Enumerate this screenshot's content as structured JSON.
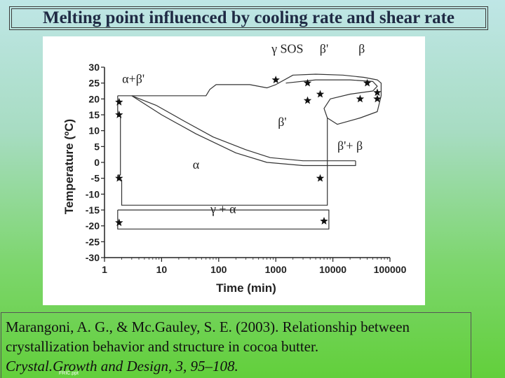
{
  "slide": {
    "title": "Melting point influenced by cooling rate and shear rate",
    "footer_tag": "FRIC.ppt"
  },
  "citation": {
    "line1": "Marangoni, A. G., & Mc.Gauley, S. E. (2003). Relationship between",
    "line2": "crystallization behavior and structure in cocoa butter.",
    "journal": "Crystal.Growth and Design, 3, 95–108."
  },
  "chart_data": {
    "type": "scatter",
    "title": "",
    "xlabel": "Time (min)",
    "ylabel": "Temperature (ºC)",
    "x_scale": "log",
    "xlim": [
      1,
      100000
    ],
    "ylim": [
      -30,
      30
    ],
    "x_ticks": [
      "1",
      "10",
      "100",
      "1000",
      "10000",
      "100000"
    ],
    "y_ticks": [
      "30",
      "25",
      "20",
      "15",
      "10",
      "5",
      "0",
      "-5",
      "-10",
      "-15",
      "-20",
      "-25",
      "-30"
    ],
    "star_points": [
      {
        "x": 1.8,
        "y": 19
      },
      {
        "x": 1.8,
        "y": 15
      },
      {
        "x": 1.8,
        "y": -5
      },
      {
        "x": 1.8,
        "y": -19
      },
      {
        "x": 1000,
        "y": 26
      },
      {
        "x": 3600,
        "y": 25
      },
      {
        "x": 3600,
        "y": 19.5
      },
      {
        "x": 6000,
        "y": 21.5
      },
      {
        "x": 6000,
        "y": -5
      },
      {
        "x": 7000,
        "y": -18.5
      },
      {
        "x": 30000,
        "y": 20
      },
      {
        "x": 40000,
        "y": 25
      },
      {
        "x": 60000,
        "y": 22
      },
      {
        "x": 60000,
        "y": 20
      }
    ],
    "region_labels": [
      {
        "text": "α+β'",
        "x": 3.2,
        "y": 25
      },
      {
        "text": "γ SOS",
        "x": 1600,
        "y": 34.5
      },
      {
        "text": "β'",
        "x": 7000,
        "y": 34.5
      },
      {
        "text": "β",
        "x": 32000,
        "y": 34.5
      },
      {
        "text": "β'",
        "x": 1300,
        "y": 11.5
      },
      {
        "text": "α",
        "x": 40,
        "y": -2
      },
      {
        "text": "β'+ β",
        "x": 20000,
        "y": 4
      },
      {
        "text": "γ + α",
        "x": 120,
        "y": -16
      }
    ],
    "boundaries": [
      {
        "name": "",
        "points": [
          [
            1.7,
            21
          ],
          [
            1.7,
            14.5
          ],
          [
            1.9,
            14.5
          ],
          [
            1.9,
            -4
          ],
          [
            1.7,
            -4
          ],
          [
            1.7,
            -5.5
          ],
          [
            2,
            -5.5
          ]
        ]
      },
      {
        "name": "",
        "points": [
          [
            2,
            -5.5
          ],
          [
            2,
            -13.5
          ],
          [
            8000,
            -13.5
          ],
          [
            8000,
            -7
          ],
          [
            8000,
            14
          ]
        ]
      },
      {
        "name": "",
        "points": [
          [
            1.7,
            21
          ],
          [
            3,
            21
          ],
          [
            30,
            21
          ],
          [
            60,
            21
          ],
          [
            70,
            23
          ],
          [
            90,
            24.5
          ],
          [
            350,
            24.5
          ],
          [
            700,
            23.5
          ],
          [
            1000,
            24.5
          ],
          [
            2000,
            27.5
          ],
          [
            5000,
            27.8
          ],
          [
            15000,
            27.5
          ],
          [
            35000,
            26.8
          ],
          [
            60000,
            26
          ],
          [
            70000,
            25
          ],
          [
            70000,
            21
          ],
          [
            60000,
            16
          ],
          [
            30000,
            14
          ],
          [
            12000,
            12
          ],
          [
            8000,
            14
          ],
          [
            7000,
            17
          ],
          [
            9000,
            20
          ],
          [
            20000,
            21.5
          ],
          [
            50000,
            22.5
          ],
          [
            60000,
            24
          ],
          [
            50000,
            25.5
          ],
          [
            20000,
            26
          ],
          [
            5000,
            26
          ],
          [
            1500,
            25
          ]
        ]
      },
      {
        "name": "",
        "points": [
          [
            3,
            21
          ],
          [
            8,
            18
          ],
          [
            25,
            13
          ],
          [
            80,
            8
          ],
          [
            300,
            4
          ],
          [
            800,
            1.5
          ],
          [
            3000,
            0.5
          ],
          [
            25000,
            0.5
          ]
        ]
      },
      {
        "name": "",
        "points": [
          [
            3,
            21
          ],
          [
            10,
            15
          ],
          [
            40,
            9
          ],
          [
            200,
            3
          ],
          [
            700,
            0
          ],
          [
            3000,
            -1
          ],
          [
            25000,
            -1
          ],
          [
            25000,
            0.5
          ]
        ]
      },
      {
        "name": "",
        "points": [
          [
            1.7,
            -15
          ],
          [
            8500,
            -15
          ],
          [
            8500,
            -21
          ],
          [
            1.7,
            -21
          ],
          [
            1.7,
            -15
          ]
        ]
      }
    ]
  }
}
